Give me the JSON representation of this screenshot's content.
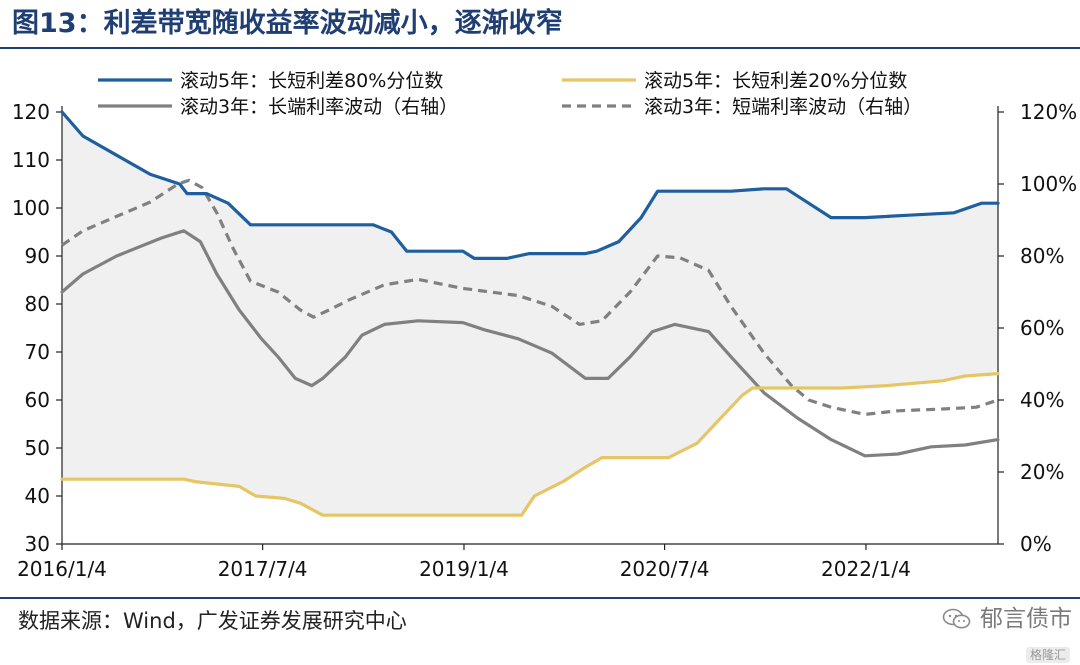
{
  "header": {
    "title": "图13：利差带宽随收益率波动减小，逐渐收窄"
  },
  "footer": {
    "source": "数据来源：Wind，广发证券发展研究中心",
    "watermark": "郁言债市",
    "corner": "格隆汇"
  },
  "colors": {
    "blue": "#1f5f9e",
    "yellow": "#e6c564",
    "gray": "#808080",
    "band": "#f0f0f0",
    "brand": "#1f3e73"
  },
  "chart_data": {
    "type": "line",
    "x_ticks": [
      "2016/1/4",
      "2017/7/4",
      "2019/1/4",
      "2020/7/4",
      "2022/1/4"
    ],
    "x_range": [
      "2016/1/4",
      "2022/12/30"
    ],
    "left_axis": {
      "ticks": [
        "120",
        "110",
        "100",
        "90",
        "80",
        "70",
        "60",
        "50",
        "40",
        "30"
      ],
      "range": [
        30,
        120
      ]
    },
    "right_axis": {
      "ticks": [
        "120%",
        "100%",
        "80%",
        "60%",
        "40%",
        "20%",
        "0%"
      ],
      "range": [
        0,
        120
      ]
    },
    "legend_placement": "top",
    "shaded_band_between": [
      "滚动5年：长短利差80%分位数",
      "滚动5年：长短利差20%分位数"
    ],
    "series": [
      {
        "name": "滚动5年：长短利差80%分位数",
        "axis": "left",
        "color": "#1f5f9e",
        "style": "solid",
        "points": [
          [
            "2016/1/4",
            120
          ],
          [
            "2016/3/1",
            115
          ],
          [
            "2016/6/1",
            111
          ],
          [
            "2016/9/1",
            107
          ],
          [
            "2016/11/20",
            105
          ],
          [
            "2016/12/10",
            103
          ],
          [
            "2017/2/1",
            103
          ],
          [
            "2017/4/1",
            101
          ],
          [
            "2017/6/1",
            96.5
          ],
          [
            "2017/9/1",
            96.5
          ],
          [
            "2018/1/1",
            96.5
          ],
          [
            "2018/5/1",
            96.5
          ],
          [
            "2018/6/20",
            95
          ],
          [
            "2018/8/1",
            91
          ],
          [
            "2018/11/1",
            91
          ],
          [
            "2019/1/1",
            91
          ],
          [
            "2019/2/1",
            89.5
          ],
          [
            "2019/5/1",
            89.5
          ],
          [
            "2019/7/1",
            90.5
          ],
          [
            "2019/12/1",
            90.5
          ],
          [
            "2020/1/1",
            91
          ],
          [
            "2020/3/1",
            93
          ],
          [
            "2020/5/1",
            98
          ],
          [
            "2020/6/15",
            103.5
          ],
          [
            "2020/9/1",
            103.5
          ],
          [
            "2021/1/1",
            103.5
          ],
          [
            "2021/4/1",
            104
          ],
          [
            "2021/6/1",
            104
          ],
          [
            "2021/8/1",
            101
          ],
          [
            "2021/10/1",
            98
          ],
          [
            "2022/1/1",
            98
          ],
          [
            "2022/5/1",
            98.5
          ],
          [
            "2022/9/1",
            99
          ],
          [
            "2022/11/15",
            101
          ],
          [
            "2022/12/30",
            101
          ]
        ]
      },
      {
        "name": "滚动5年：长短利差20%分位数",
        "axis": "left",
        "color": "#e6c564",
        "style": "solid",
        "points": [
          [
            "2016/1/4",
            43.5
          ],
          [
            "2016/6/1",
            43.5
          ],
          [
            "2016/12/1",
            43.5
          ],
          [
            "2017/1/1",
            43
          ],
          [
            "2017/3/1",
            42.5
          ],
          [
            "2017/5/1",
            42
          ],
          [
            "2017/6/15",
            40
          ],
          [
            "2017/9/1",
            39.5
          ],
          [
            "2017/10/15",
            38.5
          ],
          [
            "2017/12/15",
            36
          ],
          [
            "2018/3/1",
            36
          ],
          [
            "2018/8/1",
            36
          ],
          [
            "2019/1/1",
            36
          ],
          [
            "2019/5/1",
            36
          ],
          [
            "2019/6/10",
            36
          ],
          [
            "2019/7/15",
            40
          ],
          [
            "2019/10/1",
            43
          ],
          [
            "2019/12/1",
            46
          ],
          [
            "2020/1/15",
            48
          ],
          [
            "2020/5/1",
            48
          ],
          [
            "2020/7/15",
            48
          ],
          [
            "2020/10/1",
            51
          ],
          [
            "2020/12/1",
            56
          ],
          [
            "2021/2/1",
            61
          ],
          [
            "2021/3/1",
            62.5
          ],
          [
            "2021/7/1",
            62.5
          ],
          [
            "2021/11/1",
            62.5
          ],
          [
            "2022/3/1",
            63
          ],
          [
            "2022/8/1",
            64
          ],
          [
            "2022/10/1",
            65
          ],
          [
            "2022/12/30",
            65.5
          ]
        ]
      },
      {
        "name": "滚动3年：长端利率波动（右轴）",
        "axis": "right",
        "color": "#808080",
        "style": "solid",
        "points": [
          [
            "2016/1/4",
            70
          ],
          [
            "2016/3/1",
            75
          ],
          [
            "2016/6/1",
            80
          ],
          [
            "2016/10/1",
            85
          ],
          [
            "2016/12/1",
            87
          ],
          [
            "2017/1/15",
            84
          ],
          [
            "2017/3/1",
            75
          ],
          [
            "2017/5/1",
            65
          ],
          [
            "2017/7/1",
            57
          ],
          [
            "2017/8/15",
            52
          ],
          [
            "2017/10/1",
            46
          ],
          [
            "2017/11/15",
            44
          ],
          [
            "2017/12/15",
            46
          ],
          [
            "2018/2/15",
            52
          ],
          [
            "2018/4/1",
            58
          ],
          [
            "2018/6/1",
            61
          ],
          [
            "2018/9/1",
            62
          ],
          [
            "2019/1/1",
            61.5
          ],
          [
            "2019/3/1",
            59.5
          ],
          [
            "2019/6/1",
            57
          ],
          [
            "2019/9/1",
            53
          ],
          [
            "2019/12/1",
            46
          ],
          [
            "2020/2/1",
            46
          ],
          [
            "2020/4/1",
            52
          ],
          [
            "2020/6/1",
            59
          ],
          [
            "2020/8/1",
            61
          ],
          [
            "2020/11/1",
            59
          ],
          [
            "2021/1/1",
            52
          ],
          [
            "2021/4/1",
            42
          ],
          [
            "2021/7/1",
            35
          ],
          [
            "2021/10/1",
            29
          ],
          [
            "2022/1/1",
            24.5
          ],
          [
            "2022/4/1",
            25
          ],
          [
            "2022/7/1",
            27
          ],
          [
            "2022/10/1",
            27.5
          ],
          [
            "2022/12/30",
            29
          ]
        ]
      },
      {
        "name": "滚动3年：短端利率波动（右轴）",
        "axis": "right",
        "color": "#808080",
        "style": "dashed",
        "points": [
          [
            "2016/1/4",
            83
          ],
          [
            "2016/3/1",
            87
          ],
          [
            "2016/6/1",
            91
          ],
          [
            "2016/9/1",
            95
          ],
          [
            "2016/11/15",
            100
          ],
          [
            "2016/12/15",
            101
          ],
          [
            "2017/1/20",
            99
          ],
          [
            "2017/3/1",
            92
          ],
          [
            "2017/4/15",
            82
          ],
          [
            "2017/6/1",
            73
          ],
          [
            "2017/8/15",
            70
          ],
          [
            "2017/10/15",
            65
          ],
          [
            "2017/11/20",
            63
          ],
          [
            "2018/1/1",
            65
          ],
          [
            "2018/3/1",
            68
          ],
          [
            "2018/6/1",
            72
          ],
          [
            "2018/9/1",
            73.5
          ],
          [
            "2019/1/1",
            71
          ],
          [
            "2019/6/1",
            69
          ],
          [
            "2019/9/1",
            66
          ],
          [
            "2019/11/15",
            61
          ],
          [
            "2020/1/15",
            62
          ],
          [
            "2020/4/1",
            70
          ],
          [
            "2020/6/15",
            80
          ],
          [
            "2020/8/15",
            79.5
          ],
          [
            "2020/11/1",
            76
          ],
          [
            "2021/1/1",
            66
          ],
          [
            "2021/4/1",
            53
          ],
          [
            "2021/6/15",
            44
          ],
          [
            "2021/8/1",
            40
          ],
          [
            "2021/10/1",
            38
          ],
          [
            "2022/1/1",
            36
          ],
          [
            "2022/4/1",
            37
          ],
          [
            "2022/8/1",
            37.5
          ],
          [
            "2022/11/1",
            38
          ],
          [
            "2022/12/30",
            40
          ]
        ]
      }
    ]
  }
}
